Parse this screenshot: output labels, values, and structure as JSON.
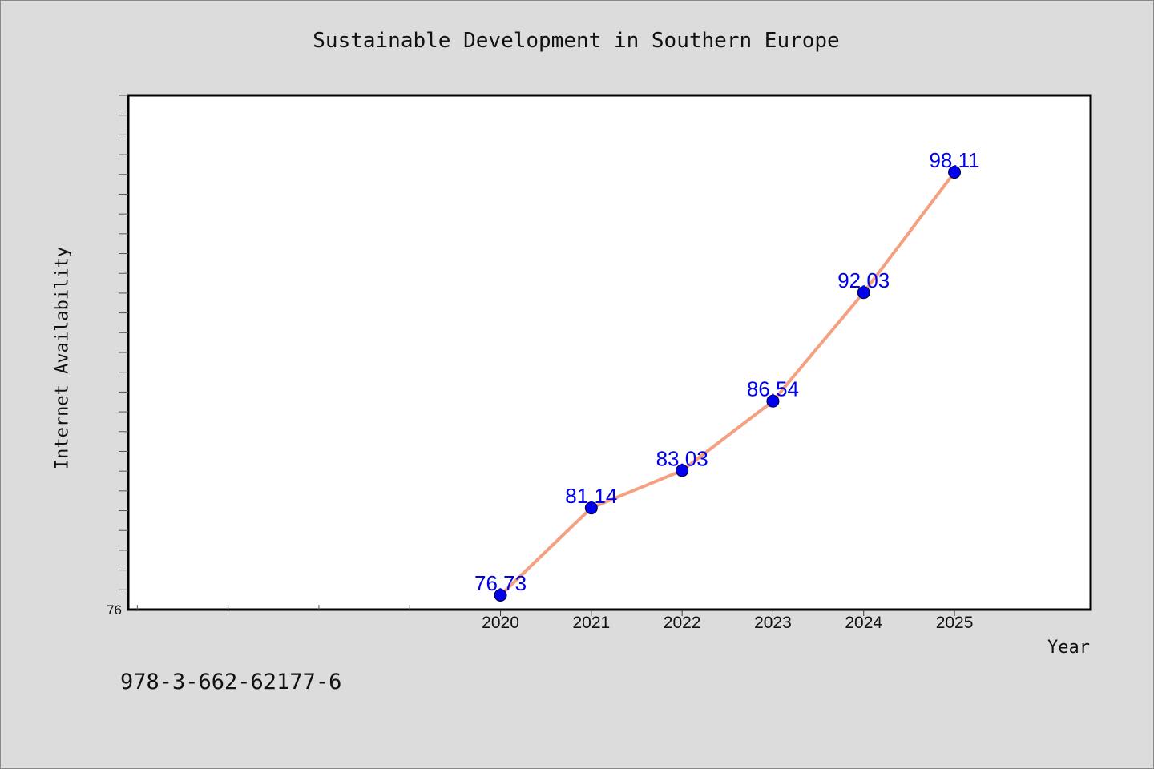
{
  "chart_data": {
    "type": "line",
    "title": "Sustainable Development in Southern Europe",
    "xlabel": "Year",
    "ylabel": "Internet Availability",
    "x": [
      2020,
      2021,
      2022,
      2023,
      2024,
      2025
    ],
    "x_tick_labels": [
      "2020",
      "2021",
      "2022",
      "2023",
      "2024",
      "2025"
    ],
    "series": [
      {
        "values": [
          76.73,
          81.14,
          83.03,
          86.54,
          92.03,
          98.11
        ],
        "labels": [
          "76.73",
          "81.14",
          "83.03",
          "86.54",
          "92.03",
          "98.11"
        ]
      }
    ],
    "y_tick_labels": [
      "76"
    ],
    "xlim": [
      2015.9,
      2026.5
    ],
    "ylim": [
      76,
      102
    ],
    "grid": false,
    "legend": "none",
    "colors": {
      "line": "#f4a081",
      "marker": "#0000ee",
      "label": "#0000ee",
      "background": "#dcdcdc",
      "plot": "#ffffff"
    }
  },
  "footer_text": "978-3-662-62177-6"
}
